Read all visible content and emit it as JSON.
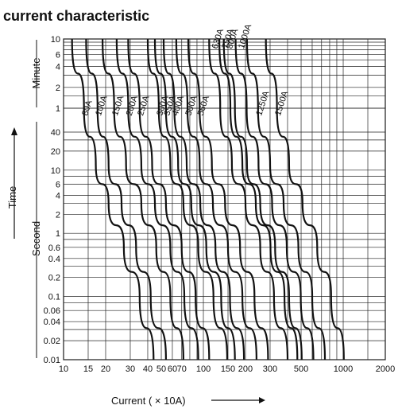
{
  "chart_data": {
    "type": "line",
    "title": "current characteristic",
    "xlabel": "Current ( × 10A)",
    "ylabel": "Time",
    "ylabel_upper": "Minute",
    "ylabel_lower": "Second",
    "x_scale": "log",
    "y_scale": "log",
    "xlim": [
      10,
      2000
    ],
    "x_ticks": [
      "10",
      "15",
      "20",
      "30",
      "40",
      "50",
      "60",
      "70",
      "100",
      "150",
      "200",
      "300",
      "500",
      "1000",
      "2000"
    ],
    "y_ticks_minute": [
      "10",
      "6",
      "4",
      "2",
      "1"
    ],
    "y_ticks_second": [
      "40",
      "20",
      "10",
      "6",
      "4",
      "2",
      "1",
      "0.6",
      "0.4",
      "0.2",
      "0.1",
      "0.06",
      "0.04",
      "0.02",
      "0.01"
    ],
    "grid": true,
    "series": [
      {
        "name": "80A",
        "x": [
          11.5,
          14,
          17,
          21,
          27,
          35,
          44
        ],
        "y": [
          600,
          60,
          12,
          3,
          0.6,
          0.1,
          0.01
        ]
      },
      {
        "name": "100A",
        "x": [
          14.5,
          17.5,
          21,
          26,
          33,
          42,
          54
        ],
        "y": [
          600,
          60,
          12,
          3,
          0.6,
          0.1,
          0.01
        ]
      },
      {
        "name": "150A",
        "x": [
          19,
          23,
          28,
          36,
          46,
          58,
          72
        ],
        "y": [
          600,
          60,
          12,
          3,
          0.6,
          0.1,
          0.01
        ]
      },
      {
        "name": "200A",
        "x": [
          24,
          29,
          36,
          45,
          58,
          73,
          92
        ],
        "y": [
          600,
          60,
          12,
          3,
          0.6,
          0.1,
          0.01
        ]
      },
      {
        "name": "250A",
        "x": [
          29,
          35,
          43,
          54,
          70,
          88,
          110
        ],
        "y": [
          600,
          60,
          12,
          3,
          0.6,
          0.1,
          0.01
        ]
      },
      {
        "name": "300A",
        "x": [
          40,
          48,
          58,
          72,
          92,
          118,
          148
        ],
        "y": [
          600,
          60,
          12,
          3,
          0.6,
          0.1,
          0.01
        ]
      },
      {
        "name": "350A",
        "x": [
          45,
          54,
          66,
          82,
          105,
          134,
          168
        ],
        "y": [
          600,
          60,
          12,
          3,
          0.6,
          0.1,
          0.01
        ]
      },
      {
        "name": "400A",
        "x": [
          52,
          62,
          76,
          95,
          122,
          155,
          195
        ],
        "y": [
          600,
          60,
          12,
          3,
          0.6,
          0.1,
          0.01
        ]
      },
      {
        "name": "500A",
        "x": [
          64,
          77,
          94,
          117,
          150,
          190,
          240
        ],
        "y": [
          600,
          60,
          12,
          3,
          0.6,
          0.1,
          0.01
        ]
      },
      {
        "name": "560A",
        "x": [
          78,
          94,
          115,
          143,
          183,
          232,
          290
        ],
        "y": [
          600,
          60,
          12,
          3,
          0.6,
          0.1,
          0.01
        ]
      },
      {
        "name": "630A",
        "x": [
          110,
          132,
          160,
          200,
          255,
          320,
          400
        ],
        "y": [
          600,
          60,
          12,
          3,
          0.6,
          0.1,
          0.01
        ]
      },
      {
        "name": "750A",
        "x": [
          130,
          156,
          190,
          237,
          302,
          380,
          470
        ],
        "y": [
          600,
          60,
          12,
          3,
          0.6,
          0.1,
          0.01
        ]
      },
      {
        "name": "800A",
        "x": [
          140,
          168,
          205,
          255,
          326,
          410,
          505
        ],
        "y": [
          600,
          60,
          12,
          3,
          0.6,
          0.1,
          0.01
        ]
      },
      {
        "name": "1000A",
        "x": [
          170,
          204,
          248,
          310,
          395,
          497,
          612
        ],
        "y": [
          600,
          60,
          12,
          3,
          0.6,
          0.1,
          0.01
        ]
      },
      {
        "name": "1250A",
        "x": [
          205,
          246,
          300,
          375,
          478,
          600,
          740
        ],
        "y": [
          600,
          60,
          12,
          3,
          0.6,
          0.1,
          0.01
        ]
      },
      {
        "name": "1500A",
        "x": [
          280,
          336,
          410,
          512,
          652,
          820,
          1010
        ],
        "y": [
          600,
          60,
          12,
          3,
          0.6,
          0.1,
          0.01
        ]
      }
    ]
  }
}
